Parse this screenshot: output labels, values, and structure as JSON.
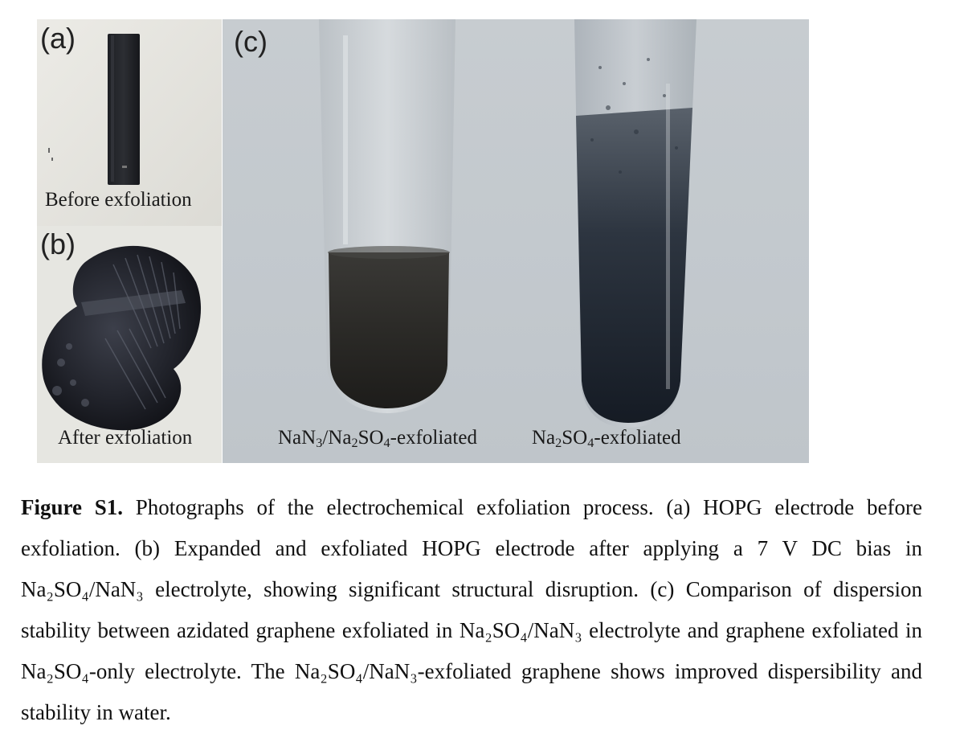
{
  "panel_a": {
    "label": "(a)",
    "caption": "Before exfoliation"
  },
  "panel_b": {
    "label": "(b)",
    "caption": "After exfoliation"
  },
  "panel_c": {
    "label": "(c)",
    "tube_left_caption": {
      "p1": "NaN",
      "s1": "3",
      "p2": "/Na",
      "s2": "2",
      "p3": "SO",
      "s3": "4",
      "p4": "-exfoliated"
    },
    "tube_right_caption": {
      "p1": "Na",
      "s1": "2",
      "p2": "SO",
      "s2": "4",
      "p3": "-exfoliated"
    }
  },
  "caption": {
    "label": "Figure S1.",
    "text": " Photographs of the electrochemical exfoliation process. (a) HOPG electrode before exfoliation. (b) Expanded and exfoliated HOPG electrode after applying a 7 V DC bias in Na₂SO₄/NaN₃ electrolyte, showing significant structural disruption. (c) Comparison of dispersion stability between azidated graphene exfoliated in Na₂SO₄/NaN₃ electrolyte and graphene exfoliated in Na₂SO₄-only electrolyte. The Na₂SO₄/NaN₃-exfoliated graphene shows improved dispersibility and stability in water."
  }
}
